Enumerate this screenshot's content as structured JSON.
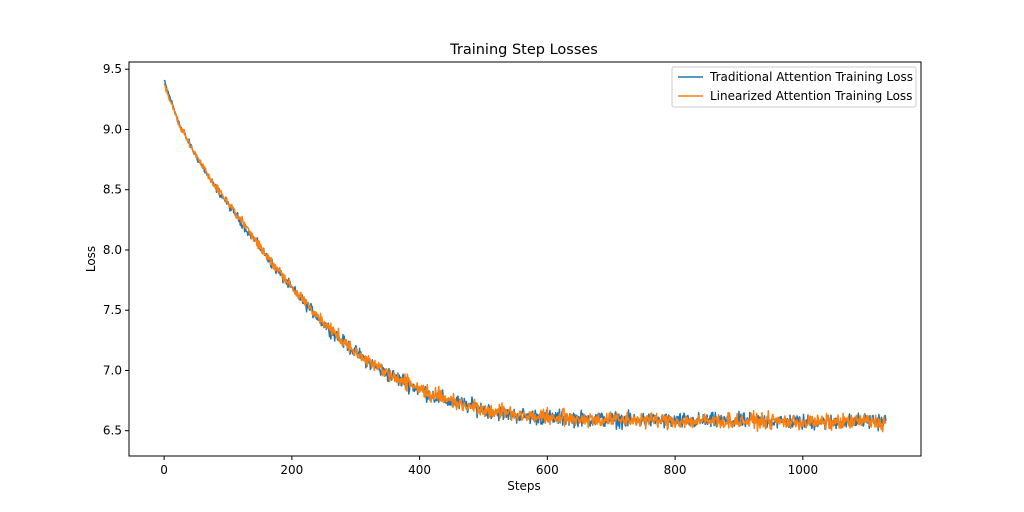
{
  "chart_data": {
    "type": "line",
    "title": "Training Step Losses",
    "xlabel": "Steps",
    "ylabel": "Loss",
    "xlim": [
      -55,
      1185
    ],
    "ylim": [
      6.29,
      9.56
    ],
    "x_ticks": [
      0,
      200,
      400,
      600,
      800,
      1000
    ],
    "y_ticks": [
      6.5,
      7.0,
      7.5,
      8.0,
      8.5,
      9.0,
      9.5
    ],
    "x_tick_labels": [
      "0",
      "200",
      "400",
      "600",
      "800",
      "1000"
    ],
    "y_tick_labels": [
      "6.5",
      "7.0",
      "7.5",
      "8.0",
      "8.5",
      "9.0",
      "9.5"
    ],
    "grid": false,
    "legend_position": "top-right",
    "series": [
      {
        "name": "Traditional Attention Training Loss",
        "color": "#1f77b4",
        "x": [
          0,
          25,
          50,
          75,
          100,
          125,
          150,
          175,
          200,
          225,
          250,
          275,
          300,
          325,
          350,
          375,
          400,
          425,
          450,
          475,
          500,
          525,
          550,
          575,
          600,
          650,
          700,
          750,
          800,
          850,
          900,
          950,
          1000,
          1050,
          1100,
          1130
        ],
        "y": [
          9.4,
          9.03,
          8.78,
          8.56,
          8.38,
          8.2,
          8.02,
          7.84,
          7.68,
          7.53,
          7.39,
          7.26,
          7.15,
          7.05,
          6.97,
          6.91,
          6.84,
          6.78,
          6.74,
          6.71,
          6.68,
          6.65,
          6.63,
          6.62,
          6.61,
          6.6,
          6.59,
          6.59,
          6.58,
          6.58,
          6.58,
          6.58,
          6.57,
          6.57,
          6.58,
          6.58
        ]
      },
      {
        "name": "Linearized Attention Training Loss",
        "color": "#ff7f0e",
        "x": [
          0,
          25,
          50,
          75,
          100,
          125,
          150,
          175,
          200,
          225,
          250,
          275,
          300,
          325,
          350,
          375,
          400,
          425,
          450,
          475,
          500,
          525,
          550,
          575,
          600,
          650,
          700,
          750,
          800,
          850,
          900,
          950,
          1000,
          1050,
          1100,
          1130
        ],
        "y": [
          9.38,
          9.02,
          8.79,
          8.57,
          8.39,
          8.21,
          8.03,
          7.85,
          7.69,
          7.54,
          7.4,
          7.27,
          7.16,
          7.06,
          6.98,
          6.91,
          6.85,
          6.79,
          6.75,
          6.71,
          6.68,
          6.66,
          6.64,
          6.62,
          6.61,
          6.6,
          6.59,
          6.59,
          6.58,
          6.58,
          6.58,
          6.58,
          6.57,
          6.57,
          6.58,
          6.56
        ]
      }
    ]
  }
}
